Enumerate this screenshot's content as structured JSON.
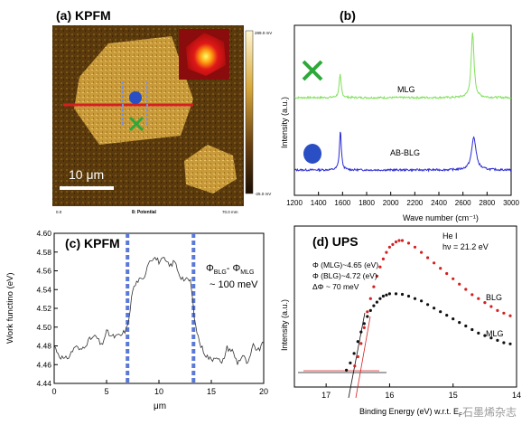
{
  "colors": {
    "mlg": "#7fe05a",
    "blg": "#2b2bd6",
    "ups_red": "#d42020",
    "ups_black": "#111111",
    "afm_light": "#e8c46a",
    "afm_dark": "#2a1a05",
    "marker_blue": "#2a4fc4",
    "marker_green": "#2fa83a",
    "dash_blue": "#5a78d8"
  },
  "watermark": "石墨烯杂志",
  "chart_data": [
    {
      "panel": "a",
      "type": "heatmap",
      "title": "(a) KPFM",
      "scale_bar_label": "10 μm",
      "colorbar_top": "289.0 mV",
      "colorbar_bottom": "-25.0 mV",
      "footer_left": "0.0",
      "footer_center": "8: Potential",
      "footer_right": "70.0 mm",
      "markers": [
        "blue-dot",
        "green-cross",
        "red-line"
      ]
    },
    {
      "panel": "b",
      "type": "line",
      "title": "(b)",
      "xlabel": "Wave number (cm⁻¹)",
      "ylabel": "Intensity (a.u.)",
      "xlim": [
        1200,
        3000
      ],
      "x_ticks": [
        1200,
        1400,
        1600,
        1800,
        2000,
        2200,
        2400,
        2600,
        2800,
        3000
      ],
      "series": [
        {
          "name": "MLG",
          "peaks": [
            {
              "x": 1580,
              "height": 0.35
            },
            {
              "x": 2680,
              "height": 1.0
            }
          ],
          "width": [
            10,
            14
          ]
        },
        {
          "name": "AB-BLG",
          "peaks": [
            {
              "x": 1582,
              "height": 0.85
            },
            {
              "x": 2690,
              "height": 0.7
            }
          ],
          "width": [
            9,
            22
          ]
        }
      ]
    },
    {
      "panel": "c",
      "type": "line",
      "title": "(c) KPFM",
      "xlabel": "μm",
      "ylabel": "Work functino (eV)",
      "xlim": [
        0,
        20
      ],
      "ylim": [
        4.44,
        4.6
      ],
      "x_ticks": [
        0,
        5,
        10,
        15,
        20
      ],
      "y_ticks": [
        4.44,
        4.46,
        4.48,
        4.5,
        4.52,
        4.54,
        4.56,
        4.58,
        4.6
      ],
      "vlines": [
        7.0,
        13.3
      ],
      "annotation_line1": "Φ",
      "annotation_sub1": "BLG",
      "annotation_dash": "- Φ",
      "annotation_sub2": "MLG",
      "annotation_line2": "~ 100 meV",
      "x": [
        0,
        0.5,
        1,
        1.5,
        2,
        2.5,
        3,
        3.5,
        4,
        4.5,
        5,
        5.5,
        6,
        6.5,
        7,
        7.5,
        8,
        8.5,
        9,
        9.5,
        10,
        10.5,
        11,
        11.5,
        12,
        12.5,
        13,
        13.5,
        14,
        14.5,
        15,
        15.5,
        16,
        16.5,
        17,
        17.5,
        18,
        18.5,
        19,
        19.5,
        20
      ],
      "y": [
        4.48,
        4.47,
        4.465,
        4.47,
        4.48,
        4.475,
        4.482,
        4.488,
        4.49,
        4.48,
        4.495,
        4.49,
        4.49,
        4.492,
        4.5,
        4.54,
        4.55,
        4.55,
        4.57,
        4.575,
        4.57,
        4.572,
        4.565,
        4.57,
        4.555,
        4.55,
        4.55,
        4.5,
        4.48,
        4.47,
        4.465,
        4.47,
        4.46,
        4.478,
        4.475,
        4.462,
        4.47,
        4.46,
        4.48,
        4.475,
        4.483
      ]
    },
    {
      "panel": "d",
      "type": "scatter",
      "title": "(d) UPS",
      "xlabel": "Binding Energy (eV) w.r.t. E",
      "xlabel_sub": "F",
      "ylabel": "Intensity (a.u.)",
      "xlim": [
        17.5,
        14.0
      ],
      "x_ticks": [
        17,
        16,
        15,
        14
      ],
      "legend": "He I",
      "legend_line2": "hν = 21.2 eV",
      "annotations": [
        "Φ (MLG)~4.65 (eV)",
        "Φ (BLG)~4.72 (eV)",
        "ΔΦ ~ 70 meV"
      ],
      "series": [
        {
          "name": "BLG",
          "x": [
            16.55,
            16.5,
            16.45,
            16.4,
            16.35,
            16.3,
            16.25,
            16.2,
            16.15,
            16.1,
            16.05,
            16.0,
            15.95,
            15.9,
            15.85,
            15.8,
            15.7,
            15.6,
            15.5,
            15.4,
            15.3,
            15.2,
            15.1,
            15.0,
            14.9,
            14.8,
            14.7,
            14.6,
            14.5,
            14.4,
            14.3,
            14.2,
            14.1
          ],
          "y": [
            0.05,
            0.12,
            0.22,
            0.34,
            0.46,
            0.56,
            0.65,
            0.73,
            0.8,
            0.86,
            0.91,
            0.95,
            0.97,
            0.99,
            1.0,
            1.0,
            0.98,
            0.95,
            0.91,
            0.87,
            0.83,
            0.79,
            0.75,
            0.71,
            0.67,
            0.63,
            0.59,
            0.56,
            0.53,
            0.5,
            0.47,
            0.45,
            0.43
          ]
        },
        {
          "name": "MLG",
          "x": [
            16.68,
            16.62,
            16.56,
            16.5,
            16.45,
            16.4,
            16.35,
            16.3,
            16.25,
            16.2,
            16.15,
            16.1,
            16.05,
            16.0,
            15.9,
            15.8,
            15.7,
            15.6,
            15.5,
            15.4,
            15.3,
            15.2,
            15.1,
            15.0,
            14.9,
            14.8,
            14.7,
            14.6,
            14.5,
            14.4,
            14.3,
            14.2,
            14.1
          ],
          "y": [
            0.02,
            0.08,
            0.16,
            0.26,
            0.34,
            0.41,
            0.47,
            0.52,
            0.56,
            0.59,
            0.62,
            0.64,
            0.65,
            0.66,
            0.66,
            0.655,
            0.64,
            0.62,
            0.6,
            0.57,
            0.54,
            0.51,
            0.48,
            0.45,
            0.42,
            0.39,
            0.36,
            0.33,
            0.31,
            0.29,
            0.27,
            0.25,
            0.24
          ]
        }
      ]
    }
  ]
}
